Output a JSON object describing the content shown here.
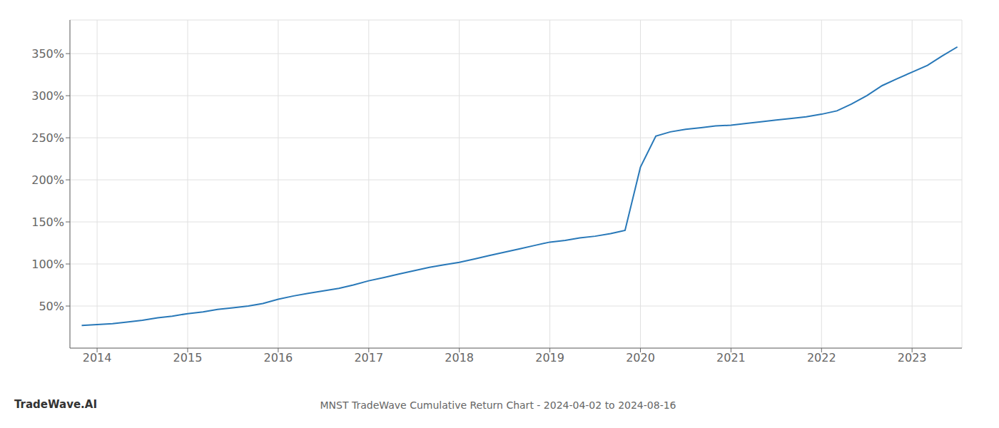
{
  "chart_data": {
    "type": "line",
    "title": "MNST TradeWave Cumulative Return Chart - 2024-04-02 to 2024-08-16",
    "annotations": [
      "TradeWave.AI"
    ],
    "x": [
      2013.83,
      2014.0,
      2014.17,
      2014.33,
      2014.5,
      2014.67,
      2014.83,
      2015.0,
      2015.17,
      2015.33,
      2015.5,
      2015.67,
      2015.83,
      2016.0,
      2016.17,
      2016.33,
      2016.5,
      2016.67,
      2016.83,
      2017.0,
      2017.17,
      2017.33,
      2017.5,
      2017.67,
      2017.83,
      2018.0,
      2018.17,
      2018.33,
      2018.5,
      2018.67,
      2018.83,
      2019.0,
      2019.17,
      2019.33,
      2019.5,
      2019.67,
      2019.75,
      2019.83,
      2020.0,
      2020.17,
      2020.33,
      2020.5,
      2020.67,
      2020.83,
      2021.0,
      2021.17,
      2021.33,
      2021.5,
      2021.67,
      2021.83,
      2022.0,
      2022.17,
      2022.33,
      2022.5,
      2022.67,
      2022.83,
      2023.0,
      2023.17,
      2023.33,
      2023.5
    ],
    "values": [
      27,
      28,
      29,
      31,
      33,
      36,
      38,
      41,
      43,
      46,
      48,
      50,
      53,
      58,
      62,
      65,
      68,
      71,
      75,
      80,
      84,
      88,
      92,
      96,
      99,
      102,
      106,
      110,
      114,
      118,
      122,
      126,
      128,
      131,
      133,
      136,
      138,
      140,
      215,
      252,
      257,
      260,
      262,
      264,
      265,
      267,
      269,
      271,
      273,
      275,
      278,
      282,
      290,
      300,
      312,
      320,
      328,
      336,
      347,
      358
    ],
    "color": "#2878b8",
    "xlim": [
      2013.7,
      2023.55
    ],
    "ylim": [
      0,
      390
    ],
    "xticks": [
      2014,
      2015,
      2016,
      2017,
      2018,
      2019,
      2020,
      2021,
      2022,
      2023
    ],
    "yticks": [
      {
        "value": 50,
        "label": "50%"
      },
      {
        "value": 100,
        "label": "100%"
      },
      {
        "value": 150,
        "label": "150%"
      },
      {
        "value": 200,
        "label": "200%"
      },
      {
        "value": 250,
        "label": "250%"
      },
      {
        "value": 300,
        "label": "300%"
      },
      {
        "value": 350,
        "label": "350%"
      }
    ],
    "grid": true
  }
}
